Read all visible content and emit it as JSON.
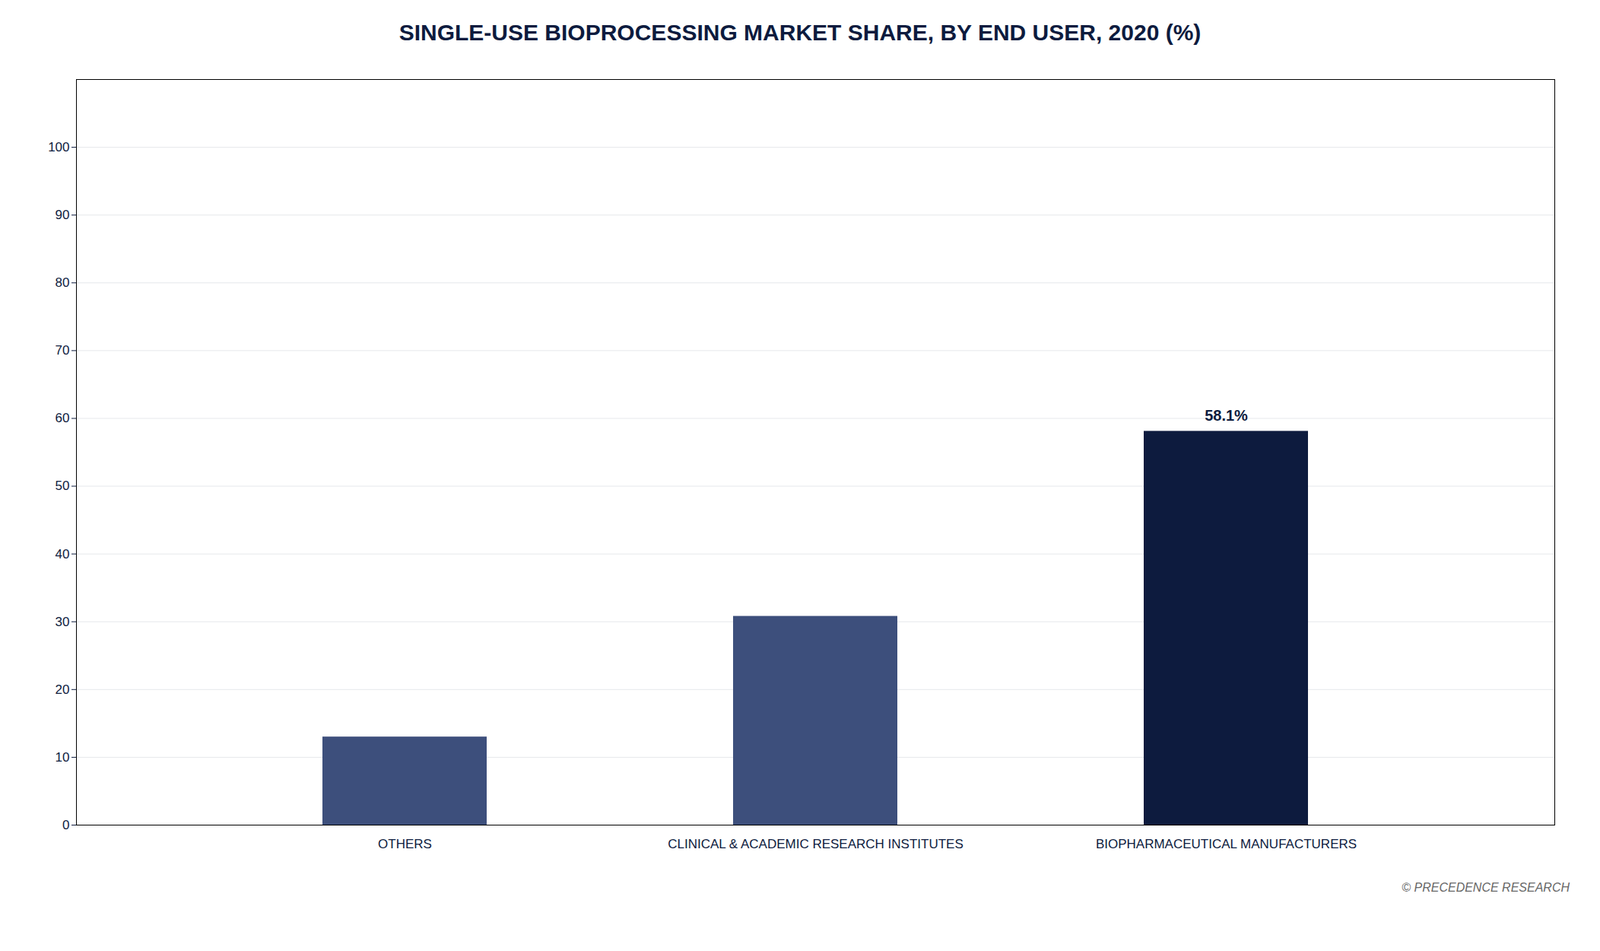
{
  "chart_data": {
    "type": "bar",
    "title": "SINGLE-USE BIOPROCESSING MARKET SHARE, BY END USER, 2020 (%)",
    "categories": [
      "OTHERS",
      "CLINICAL & ACADEMIC RESEARCH INSTITUTES",
      "BIOPHARMACEUTICAL MANUFACTURERS"
    ],
    "values": [
      13.0,
      30.8,
      58.1
    ],
    "colors": [
      "#3d4f7c",
      "#3d4f7c",
      "#0d1b3e"
    ],
    "annotations": [
      {
        "text": "58.1%",
        "category": "BIOPHARMACEUTICAL MANUFACTURERS"
      }
    ],
    "ylim": [
      0,
      110
    ],
    "yticks": [
      0,
      10,
      20,
      30,
      40,
      50,
      60,
      70,
      80,
      90,
      100
    ],
    "grid": true,
    "caption": "© PRECEDENCE RESEARCH"
  }
}
